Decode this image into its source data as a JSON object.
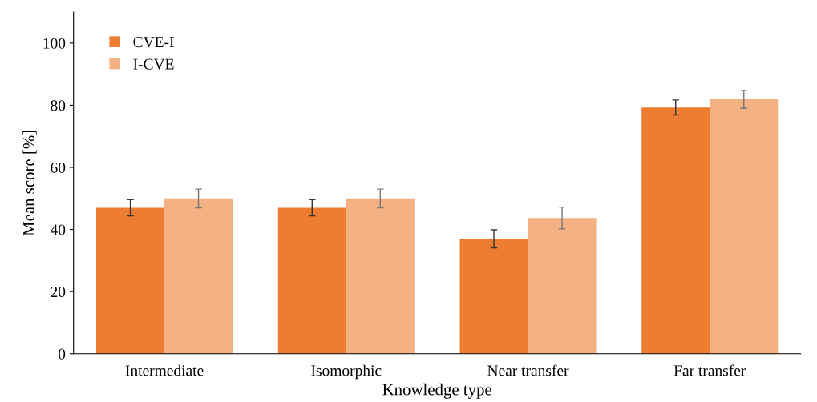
{
  "chart_data": {
    "type": "bar",
    "xlabel": "Knowledge type",
    "ylabel": "Mean score [%]",
    "categories": [
      "Intermediate",
      "Isomorphic",
      "Near transfer",
      "Far transfer"
    ],
    "series": [
      {
        "name": "CVE-I",
        "color": "#ed7d31",
        "values": [
          47,
          47,
          37,
          79.3
        ],
        "errors": [
          2.6,
          2.6,
          2.9,
          2.4
        ]
      },
      {
        "name": "I-CVE",
        "color": "#f4b183",
        "values": [
          50,
          50,
          43.7,
          81.9
        ],
        "errors": [
          3,
          3,
          3.5,
          2.9
        ]
      }
    ],
    "ylim": [
      0,
      110
    ],
    "yticks": [
      0,
      20,
      40,
      60,
      80,
      100
    ],
    "grid": false,
    "legend": "top left"
  }
}
